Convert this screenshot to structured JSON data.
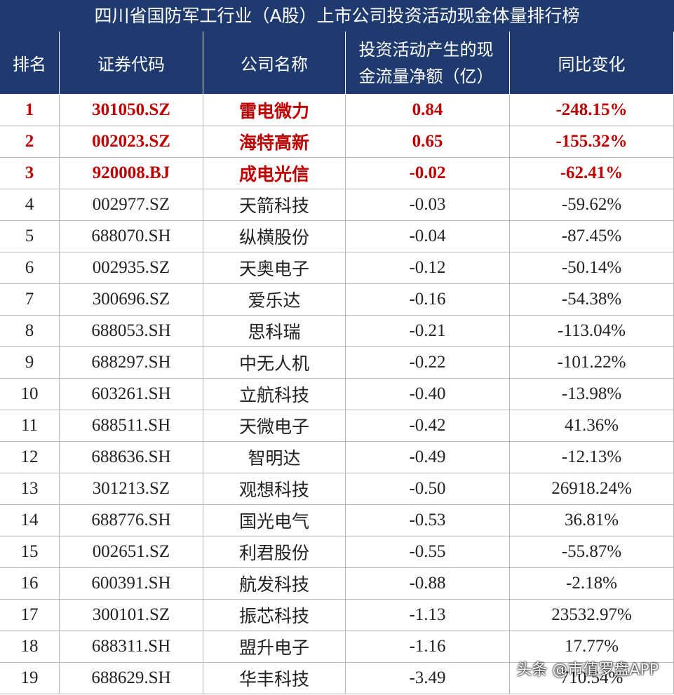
{
  "title": "四川省国防军工行业（A股）上市公司投资活动现金体量排行榜",
  "table": {
    "header": [
      "排名",
      "证券代码",
      "公司名称",
      "投资活动产生的现金流量净额（亿）",
      "同比变化"
    ],
    "rows": [
      [
        "1",
        "301050.SZ",
        "雷电微力",
        "0.84",
        "-248.15%"
      ],
      [
        "2",
        "002023.SZ",
        "海特高新",
        "0.65",
        "-155.32%"
      ],
      [
        "3",
        "920008.BJ",
        "成电光信",
        "-0.02",
        "-62.41%"
      ],
      [
        "4",
        "002977.SZ",
        "天箭科技",
        "-0.03",
        "-59.62%"
      ],
      [
        "5",
        "688070.SH",
        "纵横股份",
        "-0.04",
        "-87.45%"
      ],
      [
        "6",
        "002935.SZ",
        "天奥电子",
        "-0.12",
        "-50.14%"
      ],
      [
        "7",
        "300696.SZ",
        "爱乐达",
        "-0.16",
        "-54.38%"
      ],
      [
        "8",
        "688053.SH",
        "思科瑞",
        "-0.21",
        "-113.04%"
      ],
      [
        "9",
        "688297.SH",
        "中无人机",
        "-0.22",
        "-101.22%"
      ],
      [
        "10",
        "603261.SH",
        "立航科技",
        "-0.40",
        "-13.98%"
      ],
      [
        "11",
        "688511.SH",
        "天微电子",
        "-0.42",
        "41.36%"
      ],
      [
        "12",
        "688636.SH",
        "智明达",
        "-0.49",
        "-12.13%"
      ],
      [
        "13",
        "301213.SZ",
        "观想科技",
        "-0.50",
        "26918.24%"
      ],
      [
        "14",
        "688776.SH",
        "国光电气",
        "-0.53",
        "36.81%"
      ],
      [
        "15",
        "002651.SZ",
        "利君股份",
        "-0.55",
        "-55.87%"
      ],
      [
        "16",
        "600391.SH",
        "航发科技",
        "-0.88",
        "-2.18%"
      ],
      [
        "17",
        "300101.SZ",
        "振芯科技",
        "-1.13",
        "23532.97%"
      ],
      [
        "18",
        "688311.SH",
        "盟升电子",
        "-1.16",
        "17.77%"
      ],
      [
        "19",
        "688629.SH",
        "华丰科技",
        "-3.49",
        "710.54%"
      ]
    ]
  },
  "watermark": "头条 @市值罗盘APP"
}
